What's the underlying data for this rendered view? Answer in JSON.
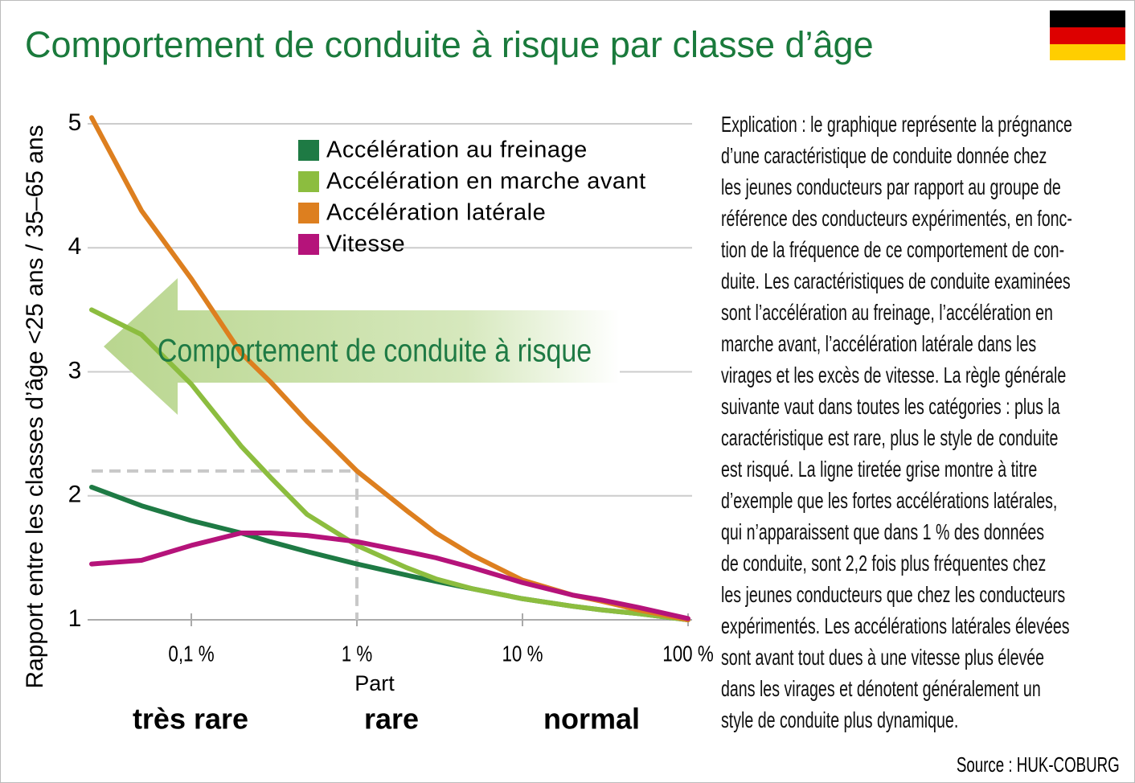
{
  "chart_data": {
    "type": "line",
    "title": "Comportement de conduite à risque par classe d’âge",
    "y_label": "Rapport entre les classes d’âge <25 ans / 35–65 ans",
    "x_label": "Part",
    "arrow_label": "Comportement de conduite à risque",
    "zones": [
      "très rare",
      "rare",
      "normal"
    ],
    "x": [
      0.025,
      0.05,
      0.1,
      0.2,
      0.3,
      0.5,
      1,
      2,
      3,
      5,
      10,
      20,
      30,
      50,
      100
    ],
    "xlim": [
      0.025,
      100
    ],
    "log_x": true,
    "xticks": [
      {
        "value": 0.1,
        "label": "0,1 %"
      },
      {
        "value": 1,
        "label": "1 %"
      },
      {
        "value": 10,
        "label": "10 %"
      },
      {
        "value": 100,
        "label": "100 %"
      }
    ],
    "ylim": [
      1,
      5
    ],
    "yticks": [
      1,
      2,
      3,
      4,
      5
    ],
    "grid": true,
    "reference_point": {
      "x": 1,
      "y": 2.2
    },
    "series": [
      {
        "name": "Accélération au freinage",
        "color": "#1e7a44",
        "values": [
          2.07,
          1.92,
          1.8,
          1.7,
          1.63,
          1.55,
          1.45,
          1.36,
          1.31,
          1.25,
          1.17,
          1.11,
          1.08,
          1.05,
          1.0
        ]
      },
      {
        "name": "Accélération en marche avant",
        "color": "#8cbd3f",
        "values": [
          3.5,
          3.3,
          2.9,
          2.4,
          2.15,
          1.85,
          1.6,
          1.42,
          1.33,
          1.25,
          1.17,
          1.11,
          1.08,
          1.05,
          1.0
        ]
      },
      {
        "name": "Accélération latérale",
        "color": "#dd7f1f",
        "values": [
          5.05,
          4.3,
          3.75,
          3.15,
          2.92,
          2.6,
          2.2,
          1.88,
          1.7,
          1.52,
          1.32,
          1.2,
          1.15,
          1.08,
          1.0
        ]
      },
      {
        "name": "Vitesse",
        "color": "#b5137a",
        "values": [
          1.45,
          1.48,
          1.6,
          1.7,
          1.7,
          1.68,
          1.63,
          1.55,
          1.5,
          1.42,
          1.3,
          1.2,
          1.16,
          1.1,
          1.01
        ]
      }
    ]
  },
  "explanation": [
    "Explication : le graphique représente la prégnance",
    "d’une caractéristique de conduite donnée chez",
    "les jeunes conducteurs par rapport au groupe de",
    "référence des conducteurs expérimentés, en fonc-",
    "tion de la fréquence de ce comportement de con-",
    "duite. Les caractéristiques de conduite examinées",
    "sont l’accélération au freinage, l’accélération en",
    "marche avant, l’accélération latérale dans les",
    "virages et les excès de vitesse. La règle générale",
    "suivante vaut dans toutes les catégories : plus la",
    "caractéristique est rare, plus le style de conduite",
    "est risqué. La ligne tiretée grise montre à titre",
    "d’exemple que les fortes accélérations latérales,",
    "qui n’apparaissent que dans 1 % des données",
    "de conduite, sont 2,2 fois plus fréquentes chez",
    "les jeunes conducteurs que chez les conducteurs",
    "expérimentés. Les accélérations latérales élevées",
    "sont avant tout dues à une vitesse plus élevée",
    "dans les virages et dénotent généralement un",
    "style de conduite plus dynamique."
  ],
  "source": "Source : HUK-COBURG"
}
